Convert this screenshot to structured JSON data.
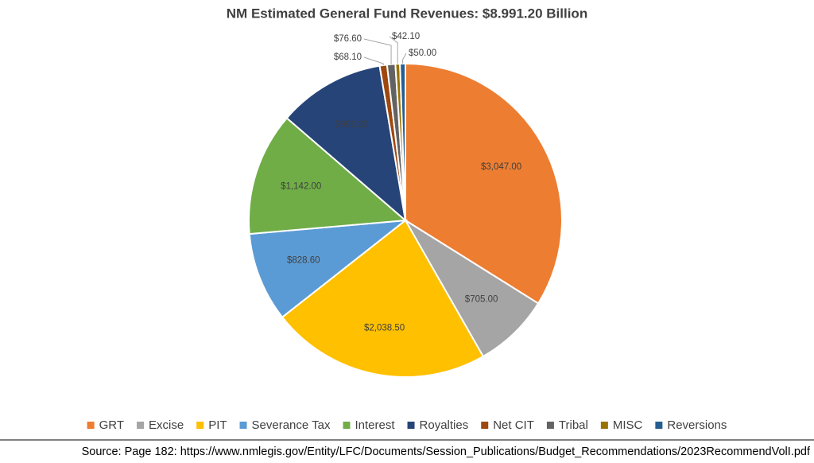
{
  "chart_data": {
    "type": "pie",
    "title": "NM Estimated General Fund Revenues: $8.991.20 Billion",
    "categories": [
      "GRT",
      "Excise",
      "PIT",
      "Severance Tax",
      "Interest",
      "Royalties",
      "Net CIT",
      "Tribal",
      "MISC",
      "Reversions"
    ],
    "values": [
      3047,
      705,
      2038.5,
      828.6,
      1142,
      993.3,
      68.1,
      76.6,
      42.1,
      50
    ],
    "value_labels": [
      "$3,047.00",
      "$705.00",
      "$2,038.50",
      "$828.60",
      "$1,142.00",
      "$993.30",
      "$68.10",
      "$76.60",
      "$42.10",
      "$50.00"
    ],
    "colors": [
      "#ed7d31",
      "#a5a5a5",
      "#ffc000",
      "#5b9bd5",
      "#70ad47",
      "#264478",
      "#9e480e",
      "#636363",
      "#997300",
      "#255e91"
    ],
    "legend": "bottom",
    "source": "Source: Page 182: https://www.nmlegis.gov/Entity/LFC/Documents/Session_Publications/Budget_Recommendations/2023RecommendVolI.pdf"
  }
}
